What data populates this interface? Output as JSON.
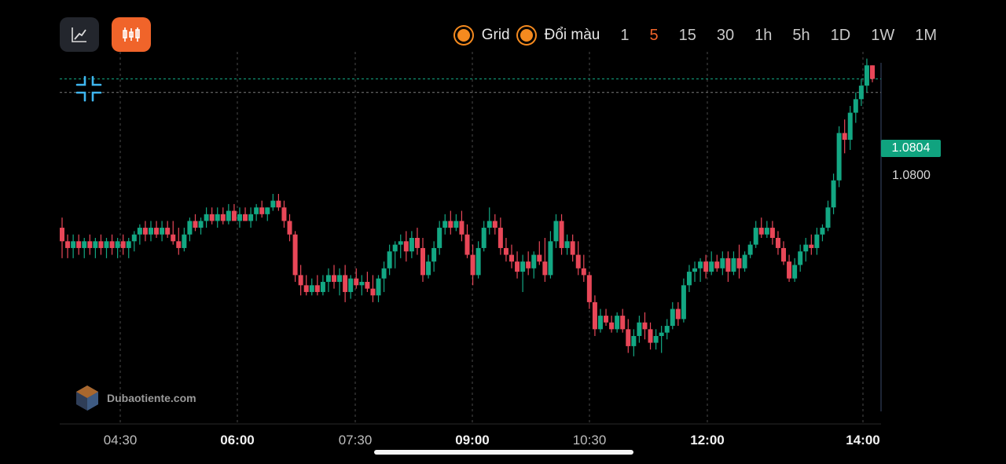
{
  "toolbar": {
    "line_icon": "line-chart-icon",
    "candle_icon": "candlestick-icon",
    "grid_label": "Grid",
    "color_label": "Đổi màu",
    "timeframes": [
      "1",
      "5",
      "15",
      "30",
      "1h",
      "5h",
      "1D",
      "1W",
      "1M"
    ],
    "active_timeframe": "5"
  },
  "colors": {
    "up": "#13a783",
    "down": "#e84758",
    "accent": "#f0642a",
    "grid": "#4a4a4a"
  },
  "price": {
    "current": "1.0804",
    "level": "1.0800"
  },
  "watermark": {
    "text": "Dubaotiente.com"
  },
  "chart_data": {
    "type": "candlestick",
    "x_ticks": [
      {
        "label": "04:30",
        "major": false
      },
      {
        "label": "06:00",
        "major": true
      },
      {
        "label": "07:30",
        "major": false
      },
      {
        "label": "09:00",
        "major": true
      },
      {
        "label": "10:30",
        "major": false
      },
      {
        "label": "12:00",
        "major": true
      },
      {
        "label": "14:00",
        "major": true
      }
    ],
    "price_range": [
      1.0702,
      1.0812
    ],
    "candles": [
      [
        1.076,
        1.0763,
        1.0751,
        1.0756
      ],
      [
        1.0756,
        1.0758,
        1.0751,
        1.0754
      ],
      [
        1.0754,
        1.0758,
        1.0751,
        1.0756
      ],
      [
        1.0756,
        1.0758,
        1.0752,
        1.0754
      ],
      [
        1.0754,
        1.0757,
        1.0751,
        1.0756
      ],
      [
        1.0756,
        1.0758,
        1.0752,
        1.0754
      ],
      [
        1.0754,
        1.0757,
        1.0751,
        1.0756
      ],
      [
        1.0756,
        1.0758,
        1.0752,
        1.0754
      ],
      [
        1.0754,
        1.0757,
        1.0751,
        1.0756
      ],
      [
        1.0756,
        1.0758,
        1.0752,
        1.0754
      ],
      [
        1.0754,
        1.0757,
        1.0751,
        1.0756
      ],
      [
        1.0756,
        1.0758,
        1.0752,
        1.0754
      ],
      [
        1.0754,
        1.0757,
        1.0751,
        1.0756
      ],
      [
        1.0756,
        1.0759,
        1.0753,
        1.0758
      ],
      [
        1.0758,
        1.0761,
        1.0755,
        1.076
      ],
      [
        1.076,
        1.0762,
        1.0756,
        1.0758
      ],
      [
        1.0758,
        1.0762,
        1.0756,
        1.076
      ],
      [
        1.076,
        1.0762,
        1.0757,
        1.0758
      ],
      [
        1.0758,
        1.0762,
        1.0756,
        1.076
      ],
      [
        1.076,
        1.0762,
        1.0757,
        1.0758
      ],
      [
        1.0758,
        1.0762,
        1.0755,
        1.0756
      ],
      [
        1.0756,
        1.076,
        1.0752,
        1.0754
      ],
      [
        1.0754,
        1.076,
        1.0753,
        1.0758
      ],
      [
        1.0758,
        1.0763,
        1.0756,
        1.0762
      ],
      [
        1.0762,
        1.0764,
        1.0759,
        1.076
      ],
      [
        1.076,
        1.0763,
        1.0758,
        1.0762
      ],
      [
        1.0762,
        1.0766,
        1.076,
        1.0764
      ],
      [
        1.0764,
        1.0766,
        1.0761,
        1.0762
      ],
      [
        1.0762,
        1.0766,
        1.076,
        1.0764
      ],
      [
        1.0764,
        1.0766,
        1.0761,
        1.0762
      ],
      [
        1.0762,
        1.0767,
        1.0761,
        1.0765
      ],
      [
        1.0765,
        1.0767,
        1.0762,
        1.0762
      ],
      [
        1.0762,
        1.0766,
        1.076,
        1.0764
      ],
      [
        1.0764,
        1.0766,
        1.0762,
        1.0762
      ],
      [
        1.0762,
        1.0766,
        1.076,
        1.0764
      ],
      [
        1.0764,
        1.0767,
        1.0762,
        1.0766
      ],
      [
        1.0766,
        1.0768,
        1.0763,
        1.0764
      ],
      [
        1.0764,
        1.0766,
        1.0762,
        1.0766
      ],
      [
        1.0766,
        1.077,
        1.0765,
        1.0768
      ],
      [
        1.0768,
        1.077,
        1.0765,
        1.0766
      ],
      [
        1.0766,
        1.0768,
        1.076,
        1.0762
      ],
      [
        1.0762,
        1.0764,
        1.0756,
        1.0758
      ],
      [
        1.0758,
        1.0759,
        1.0744,
        1.0746
      ],
      [
        1.0746,
        1.0749,
        1.074,
        1.0743
      ],
      [
        1.0743,
        1.0746,
        1.074,
        1.0741
      ],
      [
        1.0741,
        1.0745,
        1.074,
        1.0743
      ],
      [
        1.0743,
        1.0746,
        1.074,
        1.0741
      ],
      [
        1.0741,
        1.0746,
        1.074,
        1.0744
      ],
      [
        1.0744,
        1.0748,
        1.0741,
        1.0746
      ],
      [
        1.0746,
        1.0749,
        1.0742,
        1.0744
      ],
      [
        1.0744,
        1.0748,
        1.074,
        1.0746
      ],
      [
        1.0746,
        1.0749,
        1.0738,
        1.0741
      ],
      [
        1.0741,
        1.0746,
        1.0739,
        1.0745
      ],
      [
        1.0745,
        1.0748,
        1.0742,
        1.0743
      ],
      [
        1.0743,
        1.0746,
        1.074,
        1.0744
      ],
      [
        1.0744,
        1.0747,
        1.0741,
        1.0742
      ],
      [
        1.0742,
        1.0746,
        1.0738,
        1.074
      ],
      [
        1.074,
        1.0746,
        1.0738,
        1.0745
      ],
      [
        1.0745,
        1.075,
        1.0741,
        1.0748
      ],
      [
        1.0748,
        1.0755,
        1.0746,
        1.0753
      ],
      [
        1.0753,
        1.0756,
        1.0748,
        1.0755
      ],
      [
        1.0755,
        1.0758,
        1.0751,
        1.0756
      ],
      [
        1.0756,
        1.0759,
        1.075,
        1.0753
      ],
      [
        1.0753,
        1.0759,
        1.0751,
        1.0757
      ],
      [
        1.0757,
        1.076,
        1.0752,
        1.0754
      ],
      [
        1.0754,
        1.0757,
        1.0744,
        1.0746
      ],
      [
        1.0746,
        1.0752,
        1.0745,
        1.075
      ],
      [
        1.075,
        1.0756,
        1.0747,
        1.0754
      ],
      [
        1.0754,
        1.0762,
        1.0752,
        1.076
      ],
      [
        1.076,
        1.0764,
        1.0758,
        1.0762
      ],
      [
        1.0762,
        1.0765,
        1.0758,
        1.076
      ],
      [
        1.076,
        1.0764,
        1.0759,
        1.0762
      ],
      [
        1.0762,
        1.0765,
        1.0756,
        1.0758
      ],
      [
        1.0758,
        1.0761,
        1.0751,
        1.0752
      ],
      [
        1.0752,
        1.0755,
        1.0743,
        1.0746
      ],
      [
        1.0746,
        1.0756,
        1.0745,
        1.0754
      ],
      [
        1.0754,
        1.0762,
        1.0753,
        1.076
      ],
      [
        1.076,
        1.0766,
        1.0758,
        1.0762
      ],
      [
        1.0762,
        1.0764,
        1.0758,
        1.076
      ],
      [
        1.076,
        1.0763,
        1.0752,
        1.0754
      ],
      [
        1.0754,
        1.0757,
        1.075,
        1.0752
      ],
      [
        1.0752,
        1.0755,
        1.0748,
        1.075
      ],
      [
        1.075,
        1.0753,
        1.0745,
        1.0747
      ],
      [
        1.0747,
        1.0752,
        1.0741,
        1.075
      ],
      [
        1.075,
        1.0753,
        1.0746,
        1.0748
      ],
      [
        1.0748,
        1.0753,
        1.0745,
        1.0752
      ],
      [
        1.0752,
        1.0756,
        1.0749,
        1.075
      ],
      [
        1.075,
        1.0757,
        1.0744,
        1.0746
      ],
      [
        1.0746,
        1.0759,
        1.0745,
        1.0756
      ],
      [
        1.0756,
        1.0764,
        1.0754,
        1.0762
      ],
      [
        1.0762,
        1.0764,
        1.0752,
        1.0754
      ],
      [
        1.0754,
        1.0758,
        1.0752,
        1.0756
      ],
      [
        1.0756,
        1.0758,
        1.075,
        1.0752
      ],
      [
        1.0752,
        1.0756,
        1.0746,
        1.0748
      ],
      [
        1.0748,
        1.0752,
        1.0744,
        1.0746
      ],
      [
        1.0746,
        1.0747,
        1.0736,
        1.0738
      ],
      [
        1.0738,
        1.074,
        1.0728,
        1.073
      ],
      [
        1.073,
        1.0736,
        1.0729,
        1.0734
      ],
      [
        1.0734,
        1.0736,
        1.0731,
        1.0732
      ],
      [
        1.0732,
        1.0734,
        1.0729,
        1.073
      ],
      [
        1.073,
        1.0735,
        1.0729,
        1.0734
      ],
      [
        1.0734,
        1.0736,
        1.0729,
        1.073
      ],
      [
        1.073,
        1.0733,
        1.0723,
        1.0725
      ],
      [
        1.0725,
        1.073,
        1.0722,
        1.0728
      ],
      [
        1.0728,
        1.0734,
        1.0726,
        1.0732
      ],
      [
        1.0732,
        1.0735,
        1.0727,
        1.073
      ],
      [
        1.073,
        1.0732,
        1.0724,
        1.0726
      ],
      [
        1.0726,
        1.073,
        1.0724,
        1.0728
      ],
      [
        1.0728,
        1.0731,
        1.0723,
        1.0729
      ],
      [
        1.0729,
        1.0733,
        1.0727,
        1.0731
      ],
      [
        1.0731,
        1.0738,
        1.073,
        1.0736
      ],
      [
        1.0736,
        1.0738,
        1.0731,
        1.0733
      ],
      [
        1.0733,
        1.0745,
        1.0732,
        1.0743
      ],
      [
        1.0743,
        1.0749,
        1.0741,
        1.0747
      ],
      [
        1.0747,
        1.075,
        1.0744,
        1.0748
      ],
      [
        1.0748,
        1.0751,
        1.0744,
        1.075
      ],
      [
        1.075,
        1.0752,
        1.0745,
        1.0747
      ],
      [
        1.0747,
        1.0753,
        1.0746,
        1.075
      ],
      [
        1.075,
        1.0752,
        1.0747,
        1.0748
      ],
      [
        1.0748,
        1.0753,
        1.0746,
        1.0751
      ],
      [
        1.0751,
        1.0753,
        1.0744,
        1.0747
      ],
      [
        1.0747,
        1.0753,
        1.0746,
        1.0751
      ],
      [
        1.0751,
        1.0755,
        1.0745,
        1.0748
      ],
      [
        1.0748,
        1.0753,
        1.0747,
        1.0752
      ],
      [
        1.0752,
        1.0756,
        1.0751,
        1.0755
      ],
      [
        1.0755,
        1.0762,
        1.0754,
        1.076
      ],
      [
        1.076,
        1.0763,
        1.0757,
        1.0758
      ],
      [
        1.0758,
        1.0762,
        1.0757,
        1.076
      ],
      [
        1.076,
        1.0762,
        1.0755,
        1.0757
      ],
      [
        1.0757,
        1.0759,
        1.0752,
        1.0754
      ],
      [
        1.0754,
        1.0756,
        1.0749,
        1.075
      ],
      [
        1.075,
        1.0752,
        1.0744,
        1.0745
      ],
      [
        1.0745,
        1.0751,
        1.0744,
        1.0749
      ],
      [
        1.0749,
        1.0755,
        1.0747,
        1.0753
      ],
      [
        1.0753,
        1.0757,
        1.075,
        1.0755
      ],
      [
        1.0755,
        1.0758,
        1.0752,
        1.0754
      ],
      [
        1.0754,
        1.076,
        1.0752,
        1.0758
      ],
      [
        1.0758,
        1.0761,
        1.0756,
        1.076
      ],
      [
        1.076,
        1.0768,
        1.0759,
        1.0766
      ],
      [
        1.0766,
        1.0776,
        1.0764,
        1.0774
      ],
      [
        1.0774,
        1.079,
        1.0772,
        1.0788
      ],
      [
        1.0788,
        1.0792,
        1.0782,
        1.0786
      ],
      [
        1.0786,
        1.0796,
        1.0783,
        1.0794
      ],
      [
        1.0794,
        1.08,
        1.0791,
        1.0798
      ],
      [
        1.0798,
        1.0804,
        1.0796,
        1.0802
      ],
      [
        1.0802,
        1.081,
        1.08,
        1.0808
      ],
      [
        1.0808,
        1.0808,
        1.0803,
        1.0804
      ]
    ]
  }
}
